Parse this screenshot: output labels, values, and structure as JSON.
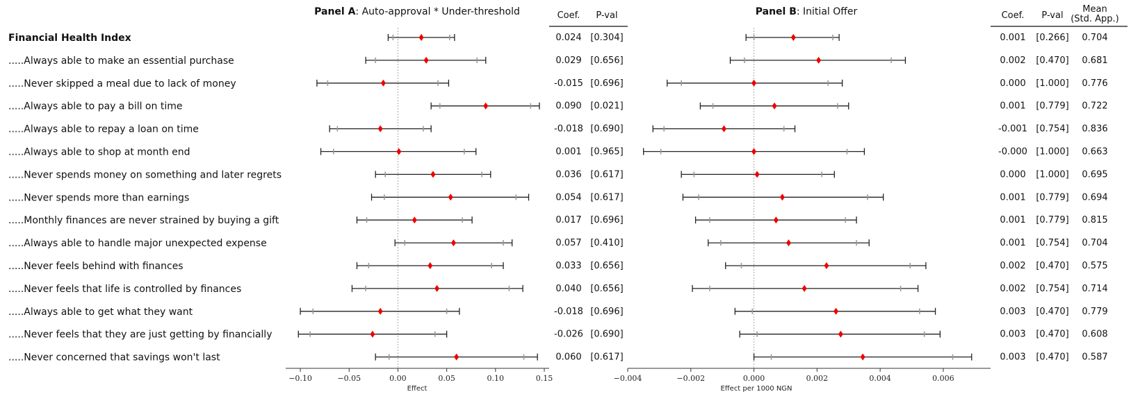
{
  "rows": [
    {
      "label": "Financial Health Index",
      "bold": true
    },
    {
      "label": ".....Always able to make an essential purchase"
    },
    {
      "label": ".....Never skipped a meal due to lack of money"
    },
    {
      "label": ".....Always able to pay a bill on time"
    },
    {
      "label": ".....Always able to repay a loan on time"
    },
    {
      "label": ".....Always able to shop at month end"
    },
    {
      "label": ".....Never spends money on something and later regrets"
    },
    {
      "label": ".....Never spends more than earnings"
    },
    {
      "label": ".....Monthly finances are never strained by buying a gift"
    },
    {
      "label": ".....Always able to handle major unexpected expense"
    },
    {
      "label": ".....Never feels behind with finances"
    },
    {
      "label": ".....Never feels that life is controlled by finances"
    },
    {
      "label": ".....Always able to get what they want"
    },
    {
      "label": ".....Never feels that they are just getting by financially"
    },
    {
      "label": ".....Never concerned that savings won't last"
    }
  ],
  "chart_data": [
    {
      "type": "forest",
      "panel": "A",
      "title_bold": "Panel A",
      "title_rest": ": Auto-approval * Under-threshold",
      "xlabel": "Effect",
      "xlim": [
        -0.115,
        0.155
      ],
      "ticks": [
        -0.1,
        -0.05,
        0.0,
        0.05,
        0.1,
        0.15
      ],
      "tick_labels": [
        "−0.10",
        "−0.05",
        "0.00",
        "0.05",
        "0.10",
        "0.15"
      ],
      "col_headers": [
        "Coef.",
        "P-val"
      ],
      "points": [
        {
          "est": 0.024,
          "ci95": [
            -0.01,
            0.058
          ],
          "ci90": [
            -0.005,
            0.053
          ],
          "coef": "0.024",
          "pval": "[0.304]"
        },
        {
          "est": 0.029,
          "ci95": [
            -0.033,
            0.09
          ],
          "ci90": [
            -0.023,
            0.081
          ],
          "coef": "0.029",
          "pval": "[0.656]"
        },
        {
          "est": -0.015,
          "ci95": [
            -0.083,
            0.052
          ],
          "ci90": [
            -0.072,
            0.041
          ],
          "coef": "-0.015",
          "pval": "[0.696]"
        },
        {
          "est": 0.09,
          "ci95": [
            0.034,
            0.145
          ],
          "ci90": [
            0.043,
            0.136
          ],
          "coef": "0.090",
          "pval": "[0.021]"
        },
        {
          "est": -0.018,
          "ci95": [
            -0.07,
            0.034
          ],
          "ci90": [
            -0.062,
            0.026
          ],
          "coef": "-0.018",
          "pval": "[0.690]"
        },
        {
          "est": 0.001,
          "ci95": [
            -0.079,
            0.08
          ],
          "ci90": [
            -0.066,
            0.068
          ],
          "coef": "0.001",
          "pval": "[0.965]"
        },
        {
          "est": 0.036,
          "ci95": [
            -0.023,
            0.095
          ],
          "ci90": [
            -0.013,
            0.086
          ],
          "coef": "0.036",
          "pval": "[0.617]"
        },
        {
          "est": 0.054,
          "ci95": [
            -0.027,
            0.134
          ],
          "ci90": [
            -0.014,
            0.121
          ],
          "coef": "0.054",
          "pval": "[0.617]"
        },
        {
          "est": 0.017,
          "ci95": [
            -0.042,
            0.076
          ],
          "ci90": [
            -0.032,
            0.066
          ],
          "coef": "0.017",
          "pval": "[0.696]"
        },
        {
          "est": 0.057,
          "ci95": [
            -0.003,
            0.117
          ],
          "ci90": [
            0.007,
            0.108
          ],
          "coef": "0.057",
          "pval": "[0.410]"
        },
        {
          "est": 0.033,
          "ci95": [
            -0.042,
            0.108
          ],
          "ci90": [
            -0.03,
            0.096
          ],
          "coef": "0.033",
          "pval": "[0.656]"
        },
        {
          "est": 0.04,
          "ci95": [
            -0.047,
            0.128
          ],
          "ci90": [
            -0.033,
            0.114
          ],
          "coef": "0.040",
          "pval": "[0.656]"
        },
        {
          "est": -0.018,
          "ci95": [
            -0.1,
            0.063
          ],
          "ci90": [
            -0.087,
            0.05
          ],
          "coef": "-0.018",
          "pval": "[0.696]"
        },
        {
          "est": -0.026,
          "ci95": [
            -0.102,
            0.05
          ],
          "ci90": [
            -0.09,
            0.038
          ],
          "coef": "-0.026",
          "pval": "[0.690]"
        },
        {
          "est": 0.06,
          "ci95": [
            -0.023,
            0.143
          ],
          "ci90": [
            -0.009,
            0.129
          ],
          "coef": "0.060",
          "pval": "[0.617]"
        }
      ]
    },
    {
      "type": "forest",
      "panel": "B",
      "title_bold": "Panel B",
      "title_rest": ": Initial Offer",
      "xlabel": "Effect per 1000 NGN",
      "xlim": [
        -0.004,
        0.0075
      ],
      "ticks": [
        -0.004,
        -0.002,
        0.0,
        0.002,
        0.004,
        0.006
      ],
      "tick_labels": [
        "−0.004",
        "−0.002",
        "0.000",
        "0.002",
        "0.004",
        "0.006"
      ],
      "col_headers": [
        "Coef.",
        "P-val",
        "Mean",
        "(Std. App.)"
      ],
      "points": [
        {
          "est": 0.00125,
          "ci95": [
            -0.00025,
            0.0027
          ],
          "ci90": [
            0.0,
            0.0025
          ],
          "coef": "0.001",
          "pval": "[0.266]",
          "mean": "0.704"
        },
        {
          "est": 0.00205,
          "ci95": [
            -0.00075,
            0.0048
          ],
          "ci90": [
            -0.0003,
            0.00435
          ],
          "coef": "0.002",
          "pval": "[0.470]",
          "mean": "0.681"
        },
        {
          "est": 0.0,
          "ci95": [
            -0.00275,
            0.0028
          ],
          "ci90": [
            -0.0023,
            0.00235
          ],
          "coef": "0.000",
          "pval": "[1.000]",
          "mean": "0.776"
        },
        {
          "est": 0.00065,
          "ci95": [
            -0.0017,
            0.003
          ],
          "ci90": [
            -0.0013,
            0.00265
          ],
          "coef": "0.001",
          "pval": "[0.779]",
          "mean": "0.722"
        },
        {
          "est": -0.00095,
          "ci95": [
            -0.0032,
            0.0013
          ],
          "ci90": [
            -0.00285,
            0.00095
          ],
          "coef": "-0.001",
          "pval": "[0.754]",
          "mean": "0.836"
        },
        {
          "est": 0.0,
          "ci95": [
            -0.0035,
            0.0035
          ],
          "ci90": [
            -0.00295,
            0.00295
          ],
          "coef": "-0.000",
          "pval": "[1.000]",
          "mean": "0.663"
        },
        {
          "est": 0.0001,
          "ci95": [
            -0.0023,
            0.00255
          ],
          "ci90": [
            -0.0019,
            0.00215
          ],
          "coef": "0.000",
          "pval": "[1.000]",
          "mean": "0.695"
        },
        {
          "est": 0.0009,
          "ci95": [
            -0.00225,
            0.0041
          ],
          "ci90": [
            -0.00175,
            0.0036
          ],
          "coef": "0.001",
          "pval": "[0.779]",
          "mean": "0.694"
        },
        {
          "est": 0.0007,
          "ci95": [
            -0.00185,
            0.00325
          ],
          "ci90": [
            -0.0014,
            0.0029
          ],
          "coef": "0.001",
          "pval": "[0.779]",
          "mean": "0.815"
        },
        {
          "est": 0.0011,
          "ci95": [
            -0.00145,
            0.00365
          ],
          "ci90": [
            -0.00105,
            0.00325
          ],
          "coef": "0.001",
          "pval": "[0.754]",
          "mean": "0.704"
        },
        {
          "est": 0.0023,
          "ci95": [
            -0.0009,
            0.00545
          ],
          "ci90": [
            -0.0004,
            0.00495
          ],
          "coef": "0.002",
          "pval": "[0.470]",
          "mean": "0.575"
        },
        {
          "est": 0.0016,
          "ci95": [
            -0.00195,
            0.0052
          ],
          "ci90": [
            -0.0014,
            0.00465
          ],
          "coef": "0.002",
          "pval": "[0.754]",
          "mean": "0.714"
        },
        {
          "est": 0.0026,
          "ci95": [
            -0.0006,
            0.00575
          ],
          "ci90": [
            -5e-05,
            0.00525
          ],
          "coef": "0.003",
          "pval": "[0.470]",
          "mean": "0.779"
        },
        {
          "est": 0.00275,
          "ci95": [
            -0.00045,
            0.0059
          ],
          "ci90": [
            0.0001,
            0.0054
          ],
          "coef": "0.003",
          "pval": "[0.470]",
          "mean": "0.608"
        },
        {
          "est": 0.00345,
          "ci95": [
            0.0,
            0.0069
          ],
          "ci90": [
            0.00055,
            0.0063
          ],
          "coef": "0.003",
          "pval": "[0.470]",
          "mean": "0.587"
        }
      ]
    }
  ],
  "colors": {
    "point": "#ee0000",
    "ci95": "#222222",
    "ci90_tick": "#999999",
    "zero_line": "#aaaaaa",
    "axis": "#333333"
  }
}
